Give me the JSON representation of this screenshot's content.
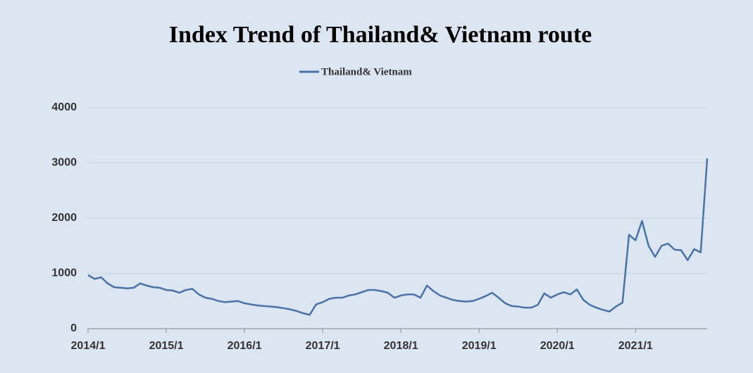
{
  "chart_data": {
    "type": "line",
    "title": "Index Trend of Thailand& Vietnam route",
    "categories": [
      "2014/1",
      null,
      null,
      null,
      null,
      null,
      null,
      null,
      null,
      null,
      null,
      null,
      "2015/1",
      null,
      null,
      null,
      null,
      null,
      null,
      null,
      null,
      null,
      null,
      null,
      "2016/1",
      null,
      null,
      null,
      null,
      null,
      null,
      null,
      null,
      null,
      null,
      null,
      "2017/1",
      null,
      null,
      null,
      null,
      null,
      null,
      null,
      null,
      null,
      null,
      null,
      "2018/1",
      null,
      null,
      null,
      null,
      null,
      null,
      null,
      null,
      null,
      null,
      null,
      "2019/1",
      null,
      null,
      null,
      null,
      null,
      null,
      null,
      null,
      null,
      null,
      null,
      "2020/1",
      null,
      null,
      null,
      null,
      null,
      null,
      null,
      null,
      null,
      null,
      null,
      "2021/1",
      null,
      null,
      null,
      null,
      null,
      null,
      null,
      null,
      null,
      null,
      null
    ],
    "series": [
      {
        "name": "Thailand& Vietnam",
        "color": "#4a72a8",
        "values": [
          970,
          900,
          930,
          820,
          750,
          740,
          730,
          740,
          820,
          780,
          750,
          740,
          700,
          690,
          650,
          700,
          720,
          620,
          560,
          540,
          500,
          480,
          490,
          500,
          460,
          440,
          420,
          410,
          400,
          390,
          370,
          350,
          320,
          280,
          250,
          440,
          480,
          540,
          560,
          560,
          600,
          620,
          660,
          700,
          700,
          680,
          650,
          560,
          600,
          620,
          620,
          560,
          780,
          680,
          600,
          560,
          520,
          500,
          490,
          500,
          540,
          590,
          650,
          560,
          460,
          410,
          400,
          380,
          380,
          430,
          640,
          560,
          620,
          660,
          620,
          710,
          520,
          430,
          380,
          340,
          310,
          400,
          470,
          1700,
          1600,
          1950,
          1500,
          1300,
          1500,
          1540,
          1430,
          1420,
          1240,
          1440,
          1380,
          3080
        ]
      }
    ],
    "ylim": [
      0,
      4000
    ],
    "yticks": [
      0,
      1000,
      2000,
      3000,
      4000
    ],
    "grid": true
  }
}
